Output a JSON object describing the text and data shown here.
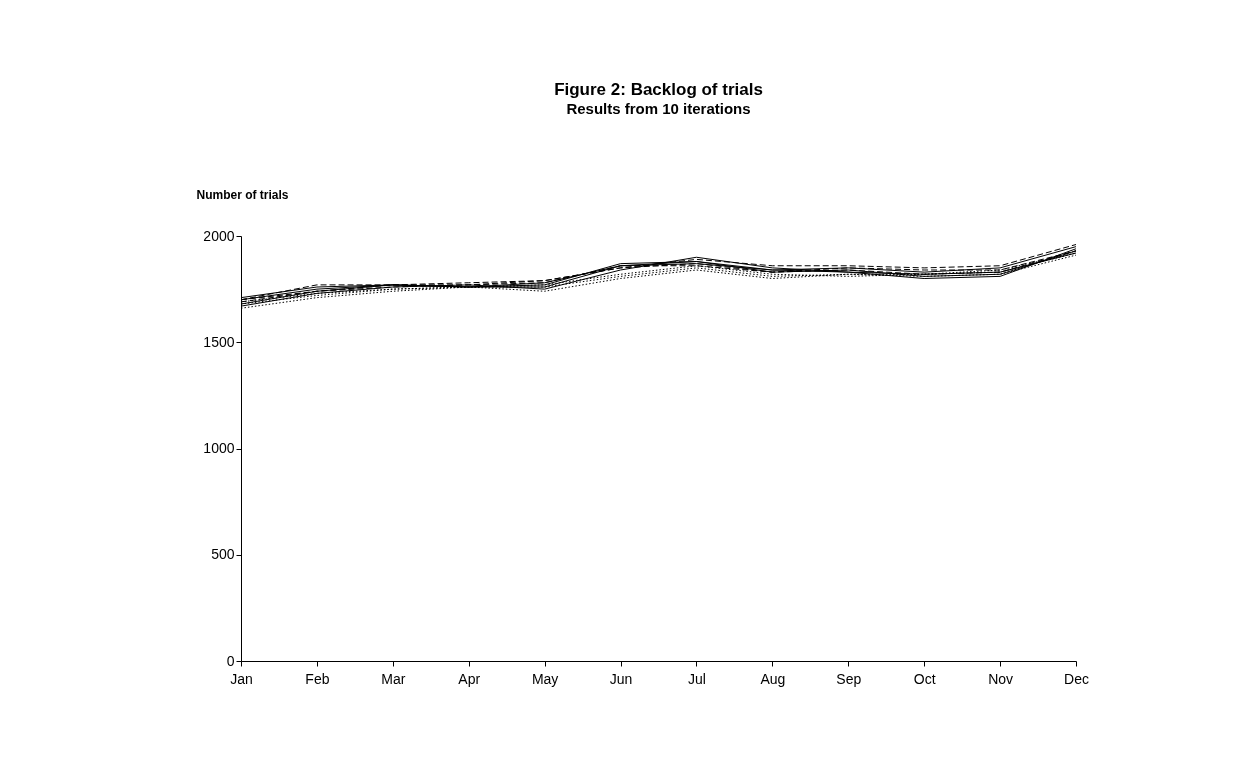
{
  "chart_data": {
    "type": "line",
    "title": "Figure 2:   Backlog of trials",
    "subtitle": "Results from 10 iterations",
    "ylabel": "Number of trials",
    "categories": [
      "Jan",
      "Feb",
      "Mar",
      "Apr",
      "May",
      "Jun",
      "Jul",
      "Aug",
      "Sep",
      "Oct",
      "Nov",
      "Dec"
    ],
    "ylim": [
      0,
      2000
    ],
    "yticks": [
      0,
      500,
      1000,
      1500,
      2000
    ],
    "grid": false,
    "marker": "none",
    "series": [
      {
        "color": "#000000",
        "line_style": "solid",
        "values": [
          1700,
          1750,
          1770,
          1760,
          1760,
          1860,
          1880,
          1840,
          1830,
          1820,
          1830,
          1920
        ]
      },
      {
        "color": "#000000",
        "line_style": "dashed",
        "values": [
          1690,
          1740,
          1770,
          1770,
          1790,
          1850,
          1870,
          1830,
          1850,
          1840,
          1840,
          1930
        ]
      },
      {
        "color": "#000000",
        "line_style": "dotted",
        "values": [
          1660,
          1710,
          1740,
          1760,
          1740,
          1800,
          1840,
          1800,
          1820,
          1810,
          1820,
          1910
        ]
      },
      {
        "color": "#000000",
        "line_style": "solid",
        "values": [
          1710,
          1760,
          1770,
          1760,
          1770,
          1870,
          1880,
          1830,
          1840,
          1810,
          1820,
          1930
        ]
      },
      {
        "color": "#000000",
        "line_style": "dashed",
        "values": [
          1700,
          1770,
          1770,
          1780,
          1790,
          1850,
          1890,
          1860,
          1860,
          1850,
          1860,
          1960
        ]
      },
      {
        "color": "#000000",
        "line_style": "dotted",
        "values": [
          1680,
          1720,
          1750,
          1760,
          1760,
          1810,
          1850,
          1810,
          1820,
          1820,
          1830,
          1920
        ]
      },
      {
        "color": "#000000",
        "line_style": "solid",
        "values": [
          1670,
          1730,
          1760,
          1770,
          1750,
          1840,
          1900,
          1850,
          1830,
          1800,
          1810,
          1940
        ]
      },
      {
        "color": "#000000",
        "line_style": "dashed",
        "values": [
          1700,
          1740,
          1760,
          1770,
          1780,
          1860,
          1860,
          1830,
          1840,
          1820,
          1830,
          1930
        ]
      },
      {
        "color": "#000000",
        "line_style": "dotted",
        "values": [
          1690,
          1730,
          1750,
          1760,
          1770,
          1820,
          1860,
          1820,
          1810,
          1820,
          1840,
          1920
        ]
      },
      {
        "color": "#000000",
        "line_style": "solid",
        "values": [
          1680,
          1740,
          1770,
          1760,
          1780,
          1860,
          1870,
          1840,
          1850,
          1830,
          1850,
          1950
        ]
      }
    ]
  }
}
